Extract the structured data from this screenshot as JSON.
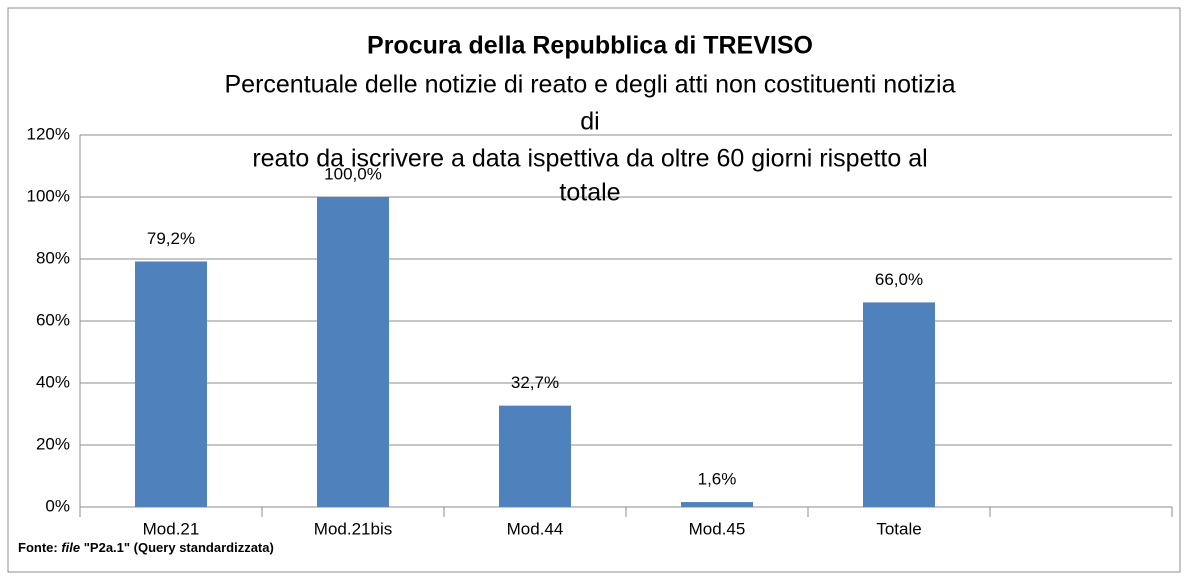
{
  "chart_data": {
    "type": "bar",
    "title": "Procura della Repubblica di TREVISO",
    "subtitle": [
      "Percentuale delle notizie di reato e degli atti non costituenti notizia",
      "di",
      "reato da iscrivere a data ispettiva da oltre 60 giorni rispetto al",
      "totale"
    ],
    "categories": [
      "Mod.21",
      "Mod.21bis",
      "Mod.44",
      "Mod.45",
      "Totale",
      null
    ],
    "values": [
      79.2,
      100,
      32.7,
      1.6,
      66.0,
      null
    ],
    "value_labels": [
      "79,2%",
      "100,0%",
      "32,7%",
      "1,6%",
      "66,0%",
      null
    ],
    "color": "#4f81bd",
    "ylim": [
      0,
      120
    ],
    "yticks": [
      {
        "value": 0,
        "label": "0%"
      },
      {
        "value": 20,
        "label": "20%"
      },
      {
        "value": 40,
        "label": "40%"
      },
      {
        "value": 60,
        "label": "60%"
      },
      {
        "value": 80,
        "label": "80%"
      },
      {
        "value": 100,
        "label": "100%"
      },
      {
        "value": 120,
        "label": "120%"
      }
    ],
    "grid": true,
    "source": [
      "Fonte:",
      "file",
      "\"P2a.1\" (Query standardizzata)"
    ]
  }
}
